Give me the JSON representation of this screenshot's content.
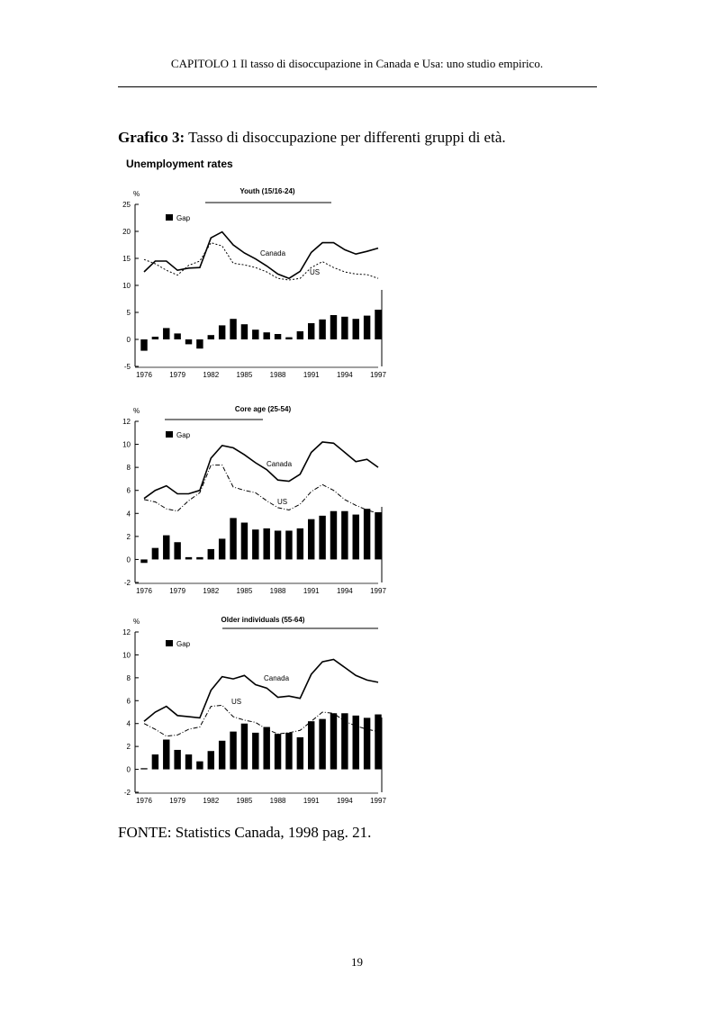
{
  "header": {
    "running_title": "CAPITOLO 1 Il tasso di disoccupazione in Canada e Usa: uno studio empirico."
  },
  "figure": {
    "label": "Grafico 3:",
    "caption": "Tasso di disoccupazione per differenti gruppi di età.",
    "figure_title": "Unemployment rates"
  },
  "colors": {
    "canada_line": "#000000",
    "us_line": "#000000",
    "gap_bar": "#000000"
  },
  "chart_data": [
    {
      "type": "bar",
      "title": "Youth (15/16-24)",
      "unit": "%",
      "legend": [
        "Gap"
      ],
      "legend_position": "top-left",
      "years": [
        1976,
        1977,
        1978,
        1979,
        1980,
        1981,
        1982,
        1983,
        1984,
        1985,
        1986,
        1987,
        1988,
        1989,
        1990,
        1991,
        1992,
        1993,
        1994,
        1995,
        1996,
        1997
      ],
      "xtick_labels": [
        "1976",
        "1979",
        "1982",
        "1985",
        "1988",
        "1991",
        "1994",
        "1997"
      ],
      "ylim": [
        -5,
        25
      ],
      "yticks": [
        "-5",
        "0",
        "5",
        "10",
        "15",
        "20",
        "25"
      ],
      "series": [
        {
          "name": "Canada",
          "kind": "line",
          "style": "solid",
          "values": [
            12.5,
            14.5,
            14.5,
            12.8,
            13.2,
            13.3,
            18.8,
            19.9,
            17.5,
            16.0,
            14.9,
            13.6,
            12.1,
            11.3,
            12.6,
            16.1,
            17.9,
            17.9,
            16.6,
            15.8,
            16.3,
            16.9
          ]
        },
        {
          "name": "US",
          "kind": "line",
          "style": "dotted",
          "values": [
            14.8,
            14.0,
            12.8,
            11.9,
            13.7,
            14.5,
            17.9,
            17.3,
            14.1,
            13.8,
            13.3,
            12.5,
            11.3,
            11.0,
            11.3,
            13.3,
            14.4,
            13.3,
            12.5,
            12.1,
            12.0,
            11.3
          ]
        },
        {
          "name": "Gap",
          "kind": "bar",
          "values": [
            -2.1,
            0.5,
            2.1,
            1.1,
            -0.9,
            -1.7,
            0.8,
            2.6,
            3.8,
            2.8,
            1.8,
            1.3,
            1.0,
            0.4,
            1.5,
            3.0,
            3.7,
            4.5,
            4.2,
            3.8,
            4.4,
            5.5
          ]
        }
      ]
    },
    {
      "type": "bar",
      "title": "Core age (25-54)",
      "unit": "%",
      "legend": [
        "Gap"
      ],
      "legend_position": "top-left",
      "years": [
        1976,
        1977,
        1978,
        1979,
        1980,
        1981,
        1982,
        1983,
        1984,
        1985,
        1986,
        1987,
        1988,
        1989,
        1990,
        1991,
        1992,
        1993,
        1994,
        1995,
        1996,
        1997
      ],
      "xtick_labels": [
        "1976",
        "1979",
        "1982",
        "1985",
        "1988",
        "1991",
        "1994",
        "1997"
      ],
      "ylim": [
        -2,
        12
      ],
      "yticks": [
        "-2",
        "0",
        "2",
        "4",
        "6",
        "8",
        "10",
        "12"
      ],
      "series": [
        {
          "name": "Canada",
          "kind": "line",
          "style": "solid",
          "values": [
            5.3,
            6.0,
            6.4,
            5.7,
            5.7,
            6.0,
            8.8,
            9.9,
            9.7,
            9.1,
            8.4,
            7.8,
            6.9,
            6.8,
            7.4,
            9.3,
            10.2,
            10.1,
            9.3,
            8.5,
            8.7,
            8.0
          ]
        },
        {
          "name": "US",
          "kind": "line",
          "style": "dash-dot",
          "values": [
            5.2,
            5.0,
            4.4,
            4.2,
            5.1,
            5.8,
            8.2,
            8.2,
            6.3,
            6.0,
            5.8,
            5.1,
            4.5,
            4.3,
            4.8,
            5.9,
            6.5,
            6.0,
            5.2,
            4.7,
            4.3,
            4.0
          ]
        },
        {
          "name": "Gap",
          "kind": "bar",
          "values": [
            -0.3,
            1.0,
            2.1,
            1.5,
            0.2,
            0.2,
            0.9,
            1.8,
            3.6,
            3.2,
            2.6,
            2.7,
            2.5,
            2.5,
            2.7,
            3.5,
            3.8,
            4.2,
            4.2,
            3.9,
            4.4,
            4.1
          ]
        }
      ]
    },
    {
      "type": "bar",
      "title": "Older individuals (55-64)",
      "unit": "%",
      "legend": [
        "Gap"
      ],
      "legend_position": "top-left",
      "years": [
        1976,
        1977,
        1978,
        1979,
        1980,
        1981,
        1982,
        1983,
        1984,
        1985,
        1986,
        1987,
        1988,
        1989,
        1990,
        1991,
        1992,
        1993,
        1994,
        1995,
        1996,
        1997
      ],
      "xtick_labels": [
        "1976",
        "1979",
        "1982",
        "1985",
        "1988",
        "1991",
        "1994",
        "1997"
      ],
      "ylim": [
        -2,
        12
      ],
      "yticks": [
        "-2",
        "0",
        "2",
        "4",
        "6",
        "8",
        "10",
        "12"
      ],
      "series": [
        {
          "name": "Canada",
          "kind": "line",
          "style": "solid",
          "values": [
            4.2,
            5.0,
            5.5,
            4.7,
            4.6,
            4.5,
            6.9,
            8.1,
            7.9,
            8.2,
            7.4,
            7.1,
            6.3,
            6.4,
            6.2,
            8.3,
            9.4,
            9.6,
            8.9,
            8.2,
            7.8,
            7.6
          ]
        },
        {
          "name": "US",
          "kind": "line",
          "style": "dash-dot",
          "values": [
            4.0,
            3.5,
            2.9,
            3.0,
            3.5,
            3.7,
            5.5,
            5.6,
            4.6,
            4.3,
            4.1,
            3.5,
            3.1,
            3.2,
            3.4,
            4.2,
            5.0,
            4.9,
            4.2,
            3.8,
            3.5,
            3.3
          ]
        },
        {
          "name": "Gap",
          "kind": "bar",
          "values": [
            0.1,
            1.3,
            2.6,
            1.7,
            1.3,
            0.7,
            1.6,
            2.5,
            3.3,
            4.0,
            3.2,
            3.7,
            3.1,
            3.2,
            2.8,
            4.2,
            4.4,
            4.9,
            4.9,
            4.7,
            4.5,
            4.8
          ]
        }
      ]
    }
  ],
  "source": "FONTE: Statistics Canada, 1998 pag. 21.",
  "footer": {
    "page_number": "19"
  }
}
